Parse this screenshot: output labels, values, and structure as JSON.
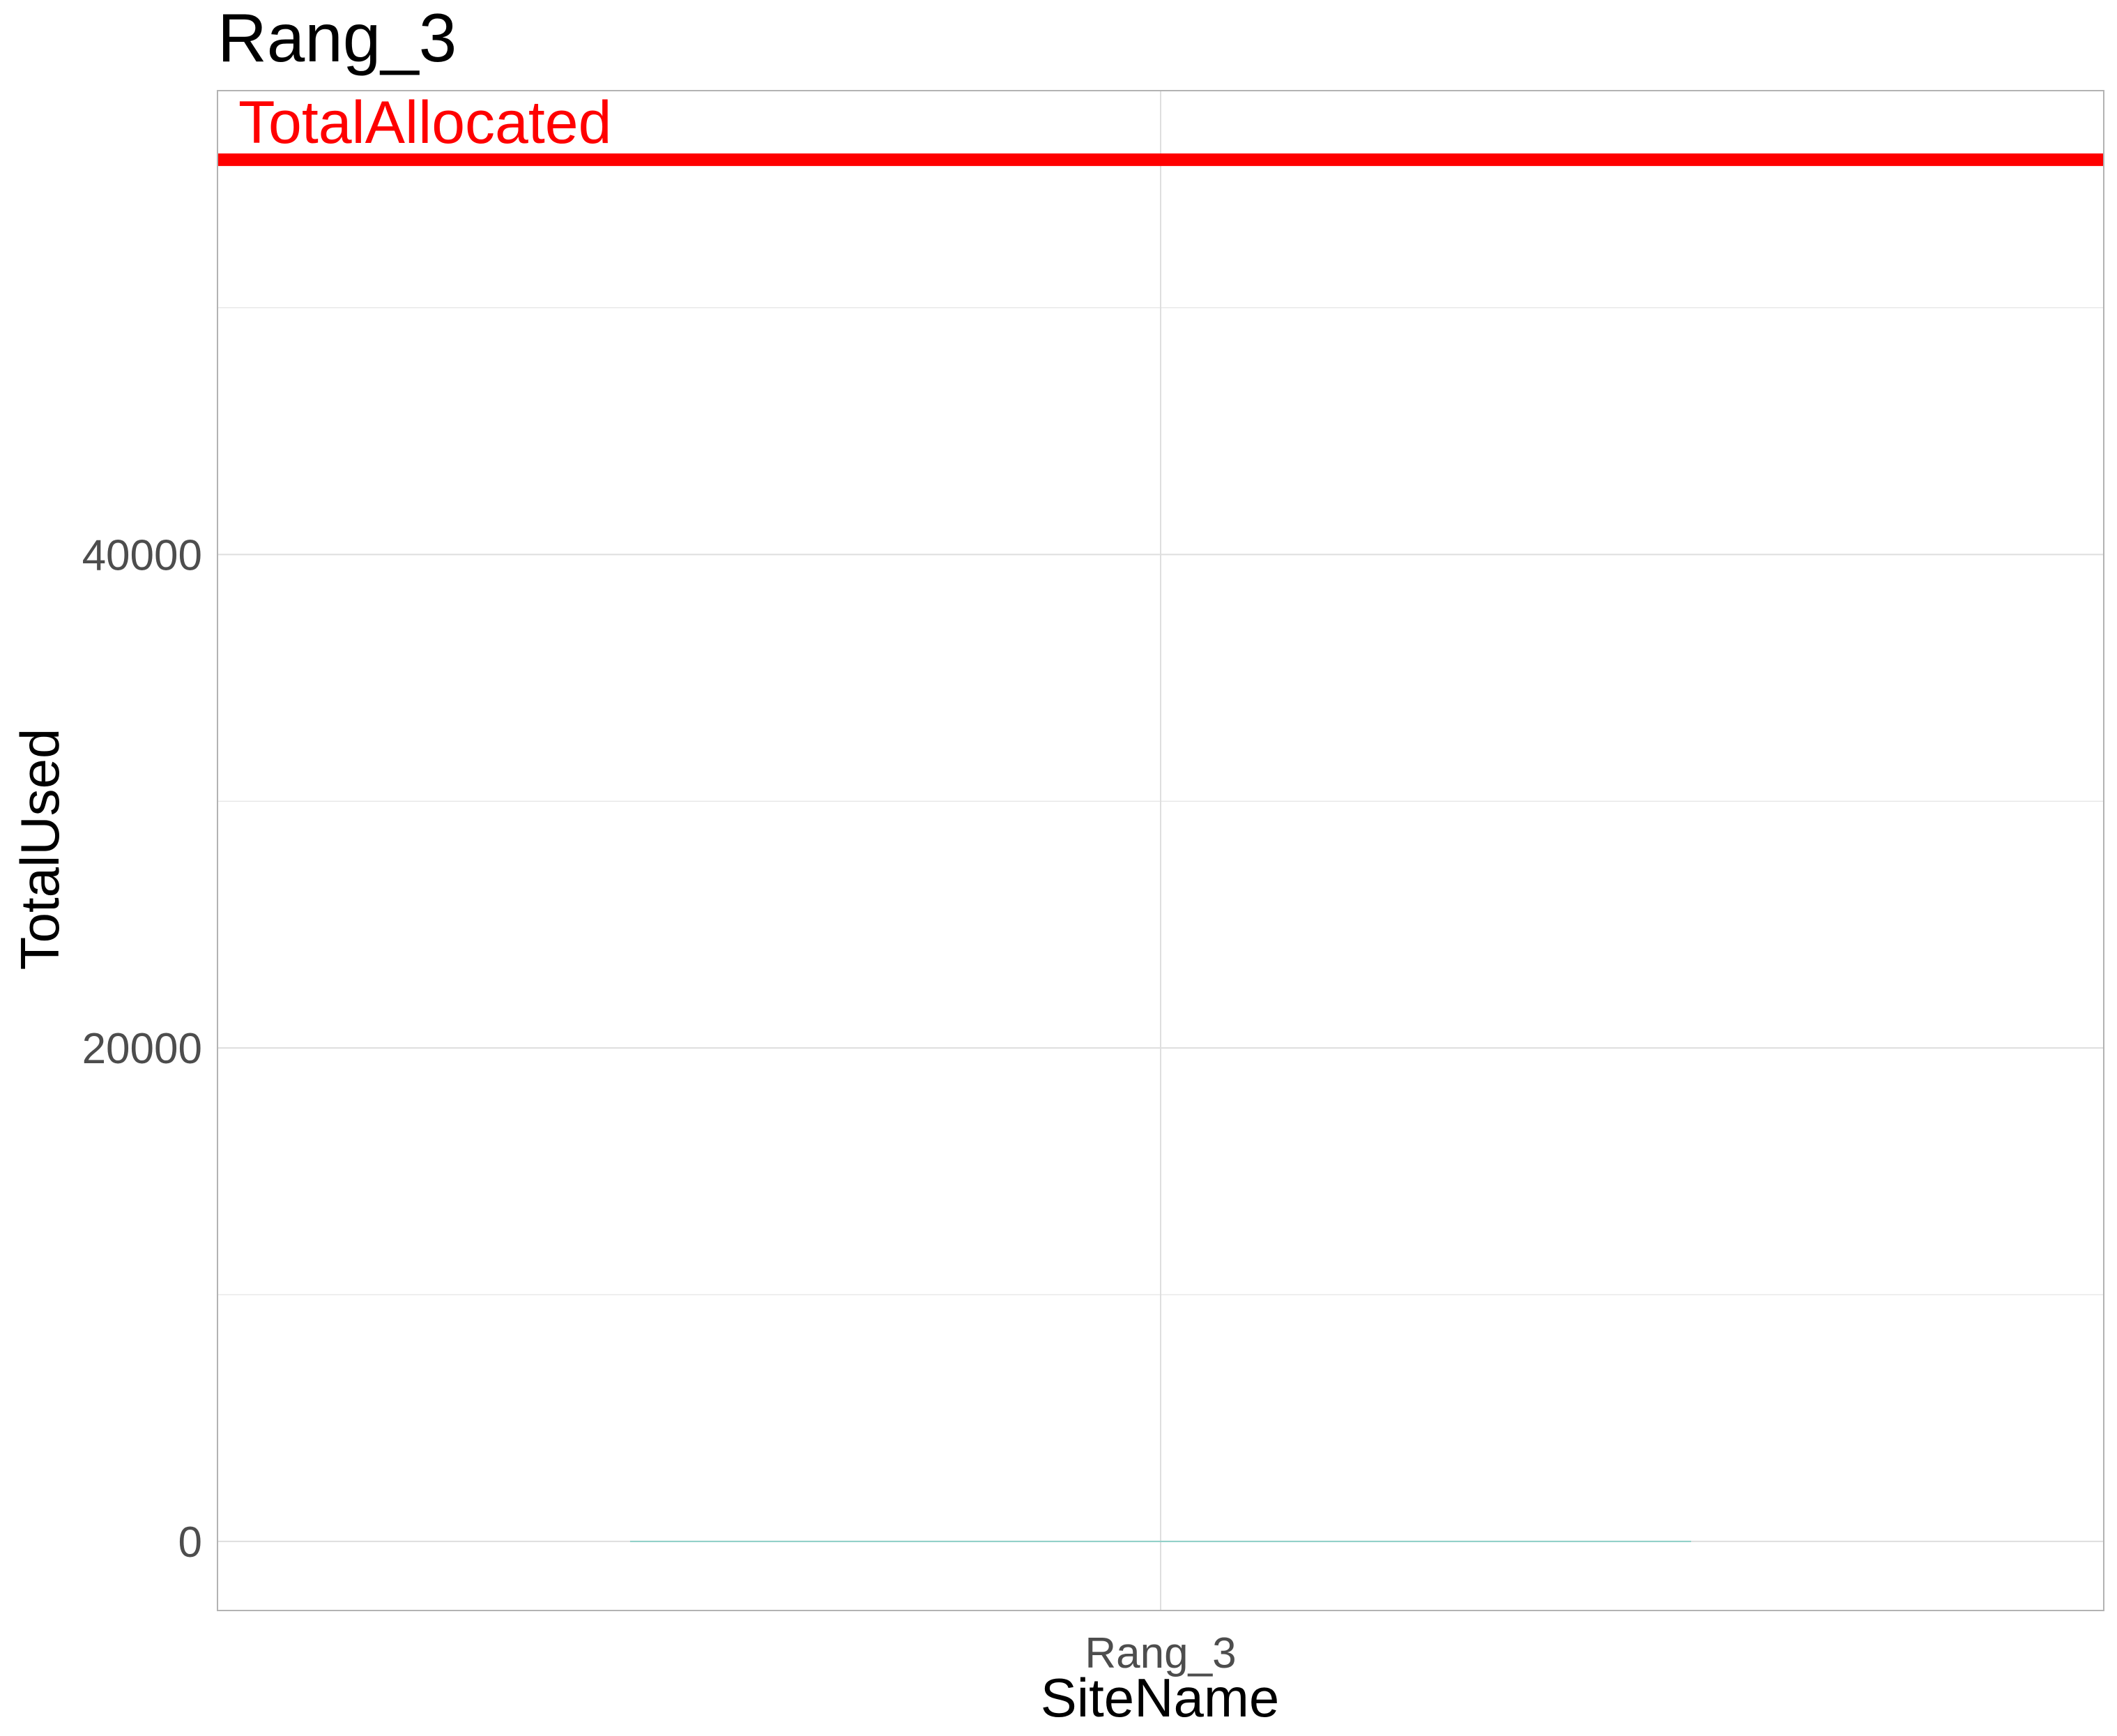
{
  "chart_data": {
    "type": "bar",
    "title": "Rang_3",
    "xlabel": "SiteName",
    "ylabel": "TotalUsed",
    "categories": [
      "Rang_3"
    ],
    "series": [
      {
        "values": [
          0
        ]
      }
    ],
    "yticks": [
      0,
      20000,
      40000
    ],
    "ytick_labels": [
      "0",
      "20000",
      "40000"
    ],
    "ylim": [
      -2800,
      58800
    ],
    "grid": true,
    "bar_color": "#8fd0c8",
    "reference_line": {
      "label": "TotalAllocated",
      "value": 56000,
      "color": "#ff0000"
    },
    "panel_border_color": "#b3b3b3",
    "grid_color": "#dedede"
  }
}
